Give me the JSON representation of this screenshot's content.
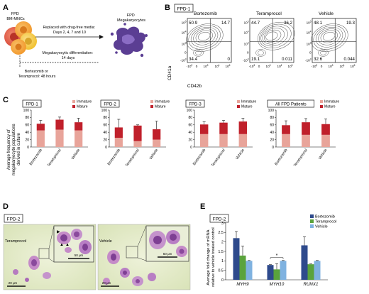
{
  "panels": {
    "A": "A",
    "B": "B",
    "C": "C",
    "D": "D",
    "E": "E"
  },
  "panelA": {
    "fpd_mncs": "FPD\nBM-MNCs",
    "fpd_mk": "FPD\nMegakaryocytes",
    "replaced": "Replaced with drug-free media:\nDays 2, 4, 7 and 10",
    "mk_diff": "Megakaryocytic differentiation:\n14 days",
    "treat": "Bortezomib or\nTeramprocol: 48 hours",
    "colors": {
      "cell_red": "#d94a3a",
      "cell_orange": "#f29a2e",
      "cell_yellow": "#f5c842",
      "mk_purple": "#6a4aa0"
    }
  },
  "panelB": {
    "tag": "FPD-1",
    "ylabel": "CD41a",
    "xlabel": "CD42b",
    "plots": [
      {
        "name": "Bortezomib",
        "ul": "50.9",
        "ur": "14.7",
        "ll": "34.4",
        "lr": "0"
      },
      {
        "name": "Teramprocol",
        "ul": "44.7",
        "ur": "36.2",
        "ll": "19.1",
        "lr": "0.011"
      },
      {
        "name": "Vehicle",
        "ul": "48.1",
        "ur": "19.3",
        "ll": "32.6",
        "lr": "0.044"
      }
    ],
    "yticks": [
      "10^5",
      "10^4",
      "10^3",
      "0",
      "-10^3"
    ],
    "xticks": [
      "-10^3",
      "0",
      "10^3",
      "10^4",
      "10^5"
    ]
  },
  "panelC": {
    "ylabel": "Average frequency of\nmegakaryocyte populations\nderived in culture",
    "legend": [
      "Immature",
      "Mature"
    ],
    "colors": {
      "immature": "#e8a49a",
      "mature": "#c0202b"
    },
    "chart_data": [
      {
        "type": "bar",
        "title": "FPD-1",
        "categories": [
          "Bortezomib",
          "Teramprocol",
          "Vehicle"
        ],
        "series": [
          {
            "name": "Immature",
            "values": [
              45,
              47,
              45
            ]
          },
          {
            "name": "Mature",
            "values": [
              18,
              27,
              22
            ]
          }
        ],
        "error": [
          9,
          7,
          11
        ],
        "ylim": [
          0,
          100
        ],
        "yticks": [
          0,
          20,
          40,
          60,
          80,
          100
        ]
      },
      {
        "type": "bar",
        "title": "FPD-2",
        "categories": [
          "Bortezomib",
          "Teramprocol",
          "Vehicle"
        ],
        "series": [
          {
            "name": "Immature",
            "values": [
              25,
              16,
              20
            ]
          },
          {
            "name": "Mature",
            "values": [
              28,
              42,
              28
            ]
          }
        ],
        "error": [
          22,
          2,
          22
        ],
        "ylim": [
          0,
          100
        ],
        "yticks": [
          0,
          20,
          40,
          60,
          80,
          100
        ]
      },
      {
        "type": "bar",
        "title": "FPD-3",
        "categories": [
          "Bortezomib",
          "Teramprocol",
          "Vehicle"
        ],
        "series": [
          {
            "name": "Immature",
            "values": [
              35,
              35,
              35
            ]
          },
          {
            "name": "Mature",
            "values": [
              26,
              31,
              34
            ]
          }
        ],
        "error": [
          7,
          6,
          9
        ],
        "ylim": [
          0,
          100
        ],
        "yticks": [
          0,
          20,
          40,
          60,
          80,
          100
        ]
      },
      {
        "type": "bar",
        "title": "All FPD Patients",
        "categories": [
          "Bortezomib",
          "Teramprocol",
          "Vehicle"
        ],
        "series": [
          {
            "name": "Immature",
            "values": [
              35,
              33,
              33
            ]
          },
          {
            "name": "Mature",
            "values": [
              24,
              34,
              29
            ]
          }
        ],
        "error": [
          12,
          10,
          14
        ],
        "ylim": [
          0,
          100
        ],
        "yticks": [
          0,
          20,
          40,
          60,
          80,
          100
        ]
      }
    ]
  },
  "panelD": {
    "tag": "FPD-2",
    "left_label": "Teramprocol",
    "right_label": "Vehicle",
    "scale_left": "20 μm",
    "scale_inset_left": "50 μm",
    "scale_right": "20 μm",
    "scale_inset_right": "50 μm"
  },
  "panelE": {
    "tag": "FPD-2",
    "ylabel": "Average fold change of mRNA\nrelative to vehicle treated control",
    "legend": [
      "Bortezomib",
      "Teramprocol",
      "Vehicle"
    ],
    "colors": {
      "Bortezomib": "#2e4a8c",
      "Teramprocol": "#5aa33c",
      "Vehicle": "#7fb2e0"
    },
    "sig": "*",
    "chart_data": {
      "type": "bar",
      "categories": [
        "MYH9",
        "MYH10",
        "RUNX1"
      ],
      "series": [
        {
          "name": "Bortezomib",
          "values": [
            2.2,
            0.78,
            1.82
          ],
          "error": [
            0.35,
            0.02,
            0.45
          ]
        },
        {
          "name": "Teramprocol",
          "values": [
            1.28,
            0.55,
            0.82
          ],
          "error": [
            0.5,
            0.3,
            0.02
          ]
        },
        {
          "name": "Vehicle",
          "values": [
            1.0,
            1.0,
            1.0
          ],
          "error": [
            0.02,
            0.02,
            0.02
          ]
        }
      ],
      "ylim": [
        0,
        3
      ],
      "yticks": [
        "0",
        "0.5",
        "1",
        "1.5",
        "2",
        "2.5",
        "3"
      ]
    }
  }
}
